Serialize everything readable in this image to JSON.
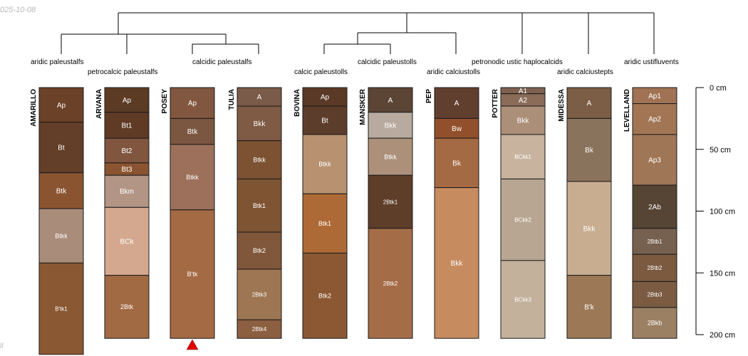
{
  "meta": {
    "date": "025-10-08",
    "corner_text": "ll"
  },
  "depth_axis": {
    "ticks": [
      {
        "depth": 0,
        "label": "0 cm"
      },
      {
        "depth": 50,
        "label": "50 cm"
      },
      {
        "depth": 100,
        "label": "100 cm"
      },
      {
        "depth": 150,
        "label": "150 cm"
      },
      {
        "depth": 200,
        "label": "200 cm"
      }
    ]
  },
  "taxa": [
    {
      "name": "aridic paleustalfs"
    },
    {
      "name": "petrocalcic paleustalfs"
    },
    {
      "name": "calcidic paleustalfs"
    },
    {
      "name": "calcic paleustolls"
    },
    {
      "name": "calcidic paleustolls"
    },
    {
      "name": "aridic calciustolls"
    },
    {
      "name": "petronodic ustic haplocalcids"
    },
    {
      "name": "aridic calciustepts"
    },
    {
      "name": "aridic ustifluvents"
    }
  ],
  "profiles": [
    {
      "name": "AMARILLO",
      "truncated": true,
      "horizons": [
        {
          "name": "Ap",
          "top": 0,
          "bottom": 28,
          "color": "#6b4127"
        },
        {
          "name": "Bt",
          "top": 28,
          "bottom": 69,
          "color": "#633e28"
        },
        {
          "name": "Btk",
          "top": 69,
          "bottom": 98,
          "color": "#8b5431"
        },
        {
          "name": "Btkk",
          "top": 98,
          "bottom": 142,
          "color": "#a98c7a"
        },
        {
          "name": "B'tk1",
          "top": 142,
          "bottom": 216,
          "color": "#8a5833"
        }
      ]
    },
    {
      "name": "ARVANA",
      "horizons": [
        {
          "name": "Ap",
          "top": 0,
          "bottom": 20,
          "color": "#5c3b24"
        },
        {
          "name": "Bt1",
          "top": 20,
          "bottom": 41,
          "color": "#5f3b26"
        },
        {
          "name": "Bt2",
          "top": 41,
          "bottom": 61,
          "color": "#80563f"
        },
        {
          "name": "Bt3",
          "top": 61,
          "bottom": 71,
          "color": "#8b5430"
        },
        {
          "name": "Bkm",
          "top": 71,
          "bottom": 97,
          "color": "#b29585"
        },
        {
          "name": "BCk",
          "top": 97,
          "bottom": 152,
          "color": "#d4a88e"
        },
        {
          "name": "2Btk",
          "top": 152,
          "bottom": 203,
          "color": "#a16a43"
        }
      ]
    },
    {
      "name": "POSEY",
      "horizons": [
        {
          "name": "Ap",
          "top": 0,
          "bottom": 25,
          "color": "#81573f"
        },
        {
          "name": "Btk",
          "top": 25,
          "bottom": 46,
          "color": "#7b5640"
        },
        {
          "name": "Btkk",
          "top": 46,
          "bottom": 99,
          "color": "#9c705a"
        },
        {
          "name": "B'tk",
          "top": 99,
          "bottom": 203,
          "color": "#a46a44"
        }
      ]
    },
    {
      "name": "TULIA",
      "horizons": [
        {
          "name": "A",
          "top": 0,
          "bottom": 15,
          "color": "#7a5a48"
        },
        {
          "name": "Bkk",
          "top": 15,
          "bottom": 43,
          "color": "#7f5a44"
        },
        {
          "name": "Btkk",
          "top": 43,
          "bottom": 74,
          "color": "#7c5232"
        },
        {
          "name": "Btk1",
          "top": 74,
          "bottom": 117,
          "color": "#7e5433"
        },
        {
          "name": "Btk2",
          "top": 117,
          "bottom": 147,
          "color": "#80573a"
        },
        {
          "name": "2Btk3",
          "top": 147,
          "bottom": 188,
          "color": "#9e7653"
        },
        {
          "name": "2Btk4",
          "top": 188,
          "bottom": 203,
          "color": "#8c5f41"
        }
      ]
    },
    {
      "name": "BOVINA",
      "horizons": [
        {
          "name": "Ap",
          "top": 0,
          "bottom": 15,
          "color": "#5a3927"
        },
        {
          "name": "Bt",
          "top": 15,
          "bottom": 38,
          "color": "#5c3d2c"
        },
        {
          "name": "Btkk",
          "top": 38,
          "bottom": 86,
          "color": "#b79170"
        },
        {
          "name": "Btk1",
          "top": 86,
          "bottom": 134,
          "color": "#ad6a37"
        },
        {
          "name": "Btk2",
          "top": 134,
          "bottom": 203,
          "color": "#8b5833"
        }
      ]
    },
    {
      "name": "MANSKER",
      "horizons": [
        {
          "name": "A",
          "top": 0,
          "bottom": 20,
          "color": "#5c4535"
        },
        {
          "name": "Bkk",
          "top": 20,
          "bottom": 41,
          "color": "#b8aa9e"
        },
        {
          "name": "Btkk",
          "top": 41,
          "bottom": 71,
          "color": "#ad907a"
        },
        {
          "name": "2Btk1",
          "top": 71,
          "bottom": 114,
          "color": "#5e3d29"
        },
        {
          "name": "2Btk2",
          "top": 114,
          "bottom": 203,
          "color": "#a46d47"
        }
      ]
    },
    {
      "name": "PEP",
      "horizons": [
        {
          "name": "A",
          "top": 0,
          "bottom": 25,
          "color": "#613f2e"
        },
        {
          "name": "Bw",
          "top": 25,
          "bottom": 41,
          "color": "#91502b"
        },
        {
          "name": "Bk",
          "top": 41,
          "bottom": 81,
          "color": "#a46a44"
        },
        {
          "name": "Bkk",
          "top": 81,
          "bottom": 203,
          "color": "#c68b5f"
        }
      ]
    },
    {
      "name": "POTTER",
      "horizons": [
        {
          "name": "A1",
          "top": 0,
          "bottom": 5,
          "color": "#7e6150"
        },
        {
          "name": "A2",
          "top": 5,
          "bottom": 15,
          "color": "#8a6c58"
        },
        {
          "name": "Bkk",
          "top": 15,
          "bottom": 38,
          "color": "#ac8f79"
        },
        {
          "name": "BCkk1",
          "top": 38,
          "bottom": 74,
          "color": "#c7b39e"
        },
        {
          "name": "BCkk2",
          "top": 74,
          "bottom": 140,
          "color": "#b8a692"
        },
        {
          "name": "BCkk3",
          "top": 140,
          "bottom": 203,
          "color": "#c3b19c"
        }
      ]
    },
    {
      "name": "MIDESSA",
      "horizons": [
        {
          "name": "A",
          "top": 0,
          "bottom": 25,
          "color": "#7b5e45"
        },
        {
          "name": "Bk",
          "top": 25,
          "bottom": 76,
          "color": "#8a735c"
        },
        {
          "name": "Bkk",
          "top": 76,
          "bottom": 152,
          "color": "#c8ad90"
        },
        {
          "name": "B'k",
          "top": 152,
          "bottom": 203,
          "color": "#9c7856"
        }
      ]
    },
    {
      "name": "LEVELLAND",
      "horizons": [
        {
          "name": "Ap1",
          "top": 0,
          "bottom": 13,
          "color": "#a17354"
        },
        {
          "name": "Ap2",
          "top": 13,
          "bottom": 38,
          "color": "#a27655"
        },
        {
          "name": "Ap3",
          "top": 38,
          "bottom": 79,
          "color": "#9f7656"
        },
        {
          "name": "2Ab",
          "top": 79,
          "bottom": 114,
          "color": "#564534"
        },
        {
          "name": "2Btb1",
          "top": 114,
          "bottom": 135,
          "color": "#76604f"
        },
        {
          "name": "2Btb2",
          "top": 135,
          "bottom": 157,
          "color": "#7b5a40"
        },
        {
          "name": "2Btb3",
          "top": 157,
          "bottom": 178,
          "color": "#7b5c43"
        },
        {
          "name": "2Bkb",
          "top": 178,
          "bottom": 203,
          "color": "#9b8063"
        }
      ]
    }
  ]
}
